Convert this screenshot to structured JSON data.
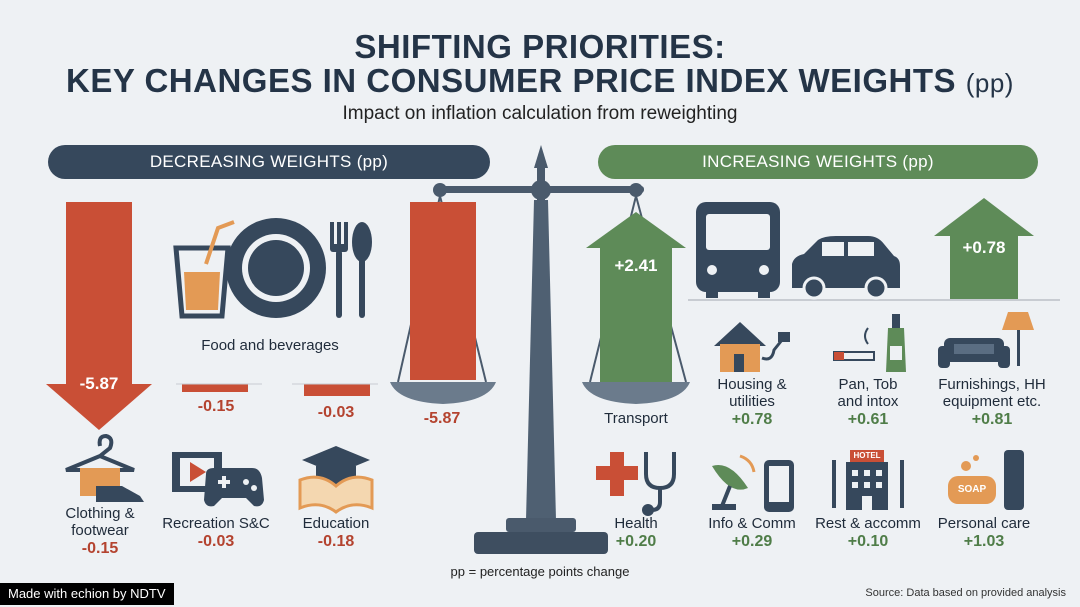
{
  "header": {
    "title_line1": "SHIFTING PRIORITIES:",
    "title_line2": "KEY CHANGES IN CONSUMER PRICE INDEX WEIGHTS",
    "title_unit": "(pp)",
    "subtitle": "Impact on inflation calculation from reweighting"
  },
  "banners": {
    "decreasing": "DECREASING WEIGHTS (pp)",
    "increasing": "INCREASING WEIGHTS (pp)"
  },
  "chart_data": {
    "type": "bar",
    "title": "Shifting Priorities: Key Changes in Consumer Price Index Weights (pp)",
    "subtitle": "Impact on inflation calculation from reweighting",
    "unit": "pp",
    "decreasing": [
      {
        "category": "Food and beverages",
        "value": -5.87,
        "display": "-5.87"
      },
      {
        "category": "Clothing & footwear",
        "value": -0.15,
        "display": "-0.15"
      },
      {
        "category": "Recreation S&C",
        "value": -0.03,
        "display": "-0.03"
      },
      {
        "category": "Education",
        "value": -0.18,
        "display": "-0.18"
      }
    ],
    "increasing": [
      {
        "category": "Transport",
        "value": 2.41,
        "display": "+2.41"
      },
      {
        "category": "Housing & utilities",
        "value": 0.78,
        "display": "+0.78"
      },
      {
        "category": "Pan, Tob and intox",
        "value": 0.61,
        "display": "+0.61"
      },
      {
        "category": "Furnishings, HH equipment etc.",
        "value": 0.81,
        "display": "+0.81"
      },
      {
        "category": "Health",
        "value": 0.2,
        "display": "+0.20"
      },
      {
        "category": "Info & Comm",
        "value": 0.29,
        "display": "+0.29"
      },
      {
        "category": "Rest & accomm",
        "value": 0.1,
        "display": "+0.10"
      },
      {
        "category": "Personal care",
        "value": 1.03,
        "display": "+1.03"
      }
    ],
    "small_bar_labels": [
      "-0.15",
      "-0.03"
    ],
    "arrow_up_label": "+0.78",
    "colors": {
      "decrease": "#c94f36",
      "increase": "#5e8b58",
      "neutral": "#36485c"
    }
  },
  "labels": {
    "food": "Food and beverages",
    "clothing_line1": "Clothing &",
    "clothing_line2": "footwear",
    "recreation": "Recreation S&C",
    "education": "Education",
    "transport": "Transport",
    "housing_line1": "Housing &",
    "housing_line2": "utilities",
    "pan_line1": "Pan, Tob",
    "pan_line2": "and intox",
    "furn_line1": "Furnishings, HH",
    "furn_line2": "equipment etc.",
    "health": "Health",
    "info": "Info & Comm",
    "rest": "Rest & accomm",
    "personal": "Personal care"
  },
  "icons": {
    "hotel_sign": "HOTEL",
    "soap_label": "SOAP"
  },
  "footer": {
    "note": "pp = percentage points change",
    "source": "Source: Data based on provided analysis",
    "made_with": "Made with echion by NDTV"
  }
}
